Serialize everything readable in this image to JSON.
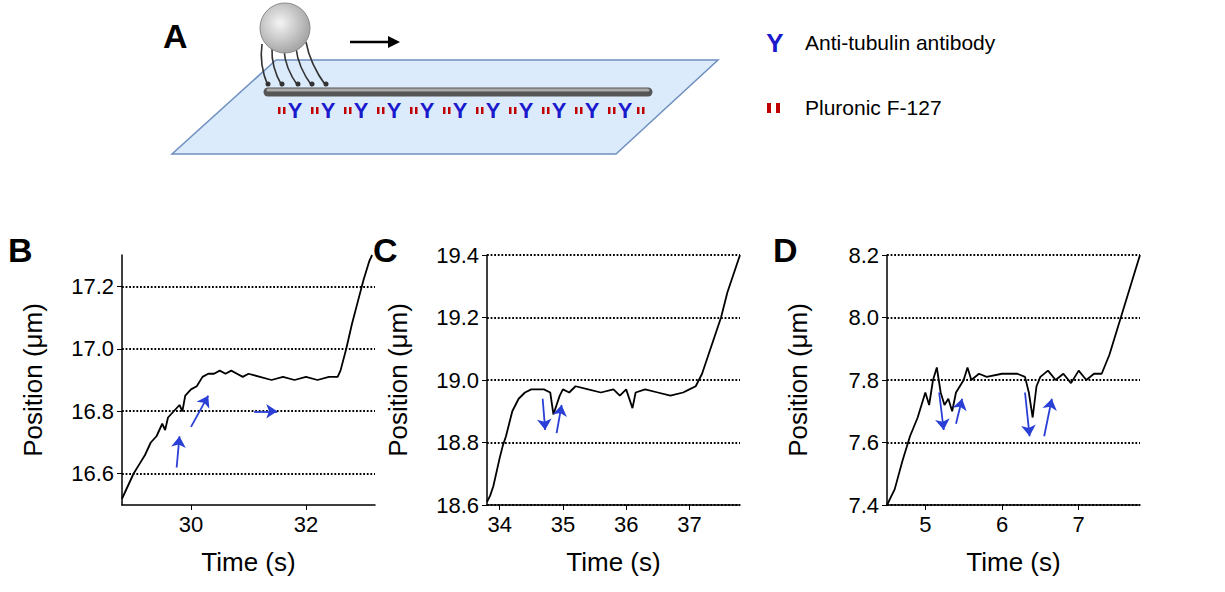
{
  "diagram": {
    "label": "A",
    "legend": [
      {
        "symbol": "Y",
        "label": "Anti-tubulin antibody",
        "color": "#1a1acc"
      },
      {
        "label": "Pluronic F-127",
        "color": "#c00000"
      }
    ]
  },
  "chart_data": [
    {
      "type": "line",
      "label": "B",
      "x_label": "Time (s)",
      "y_label": "Position (μm)",
      "color": "#000000",
      "marker": "none",
      "line_style": "solid",
      "grid": true,
      "xlim": [
        28.8,
        33.2
      ],
      "xticks": [
        30,
        32
      ],
      "ylim": [
        16.5,
        17.3
      ],
      "yticks": [
        16.6,
        16.8,
        {
          "value": 17,
          "label": "17.0"
        },
        17.2
      ],
      "x": [
        28.8,
        28.9,
        29.0,
        29.1,
        29.2,
        29.3,
        29.4,
        29.5,
        29.55,
        29.6,
        29.7,
        29.8,
        29.85,
        29.9,
        30.0,
        30.1,
        30.2,
        30.3,
        30.4,
        30.5,
        30.6,
        30.7,
        30.8,
        30.9,
        31.0,
        31.2,
        31.4,
        31.6,
        31.8,
        32.0,
        32.2,
        32.4,
        32.55,
        32.6,
        32.7,
        32.8,
        32.9,
        33.0,
        33.1,
        33.15
      ],
      "values": [
        16.52,
        16.56,
        16.6,
        16.63,
        16.66,
        16.7,
        16.72,
        16.76,
        16.74,
        16.78,
        16.8,
        16.82,
        16.8,
        16.85,
        16.87,
        16.88,
        16.91,
        16.92,
        16.92,
        16.93,
        16.92,
        16.93,
        16.92,
        16.91,
        16.92,
        16.91,
        16.9,
        16.91,
        16.9,
        16.91,
        16.9,
        16.91,
        16.91,
        16.93,
        17.0,
        17.08,
        17.15,
        17.22,
        17.28,
        17.3
      ],
      "arrows": [
        {
          "from": [
            29.75,
            16.62
          ],
          "to": [
            29.8,
            16.72
          ]
        },
        {
          "from": [
            30.0,
            16.75
          ],
          "to": [
            30.3,
            16.85
          ]
        },
        {
          "from": [
            31.1,
            16.8
          ],
          "to": [
            31.5,
            16.8
          ]
        }
      ]
    },
    {
      "type": "line",
      "label": "C",
      "x_label": "Time (s)",
      "y_label": "Position (μm)",
      "color": "#000000",
      "marker": "none",
      "line_style": "solid",
      "grid": true,
      "xlim": [
        33.8,
        37.8
      ],
      "xticks": [
        34,
        35,
        36,
        37
      ],
      "ylim": [
        18.6,
        19.4
      ],
      "yticks": [
        18.6,
        18.8,
        {
          "value": 19,
          "label": "19.0"
        },
        19.2,
        19.4
      ],
      "x": [
        33.8,
        33.85,
        33.9,
        34.0,
        34.05,
        34.1,
        34.15,
        34.2,
        34.3,
        34.4,
        34.5,
        34.6,
        34.7,
        34.8,
        34.85,
        34.9,
        34.95,
        35.0,
        35.1,
        35.2,
        35.4,
        35.6,
        35.8,
        35.9,
        36.0,
        36.1,
        36.15,
        36.3,
        36.5,
        36.7,
        36.9,
        37.0,
        37.1,
        37.2,
        37.3,
        37.4,
        37.5,
        37.6,
        37.7,
        37.8
      ],
      "values": [
        18.61,
        18.63,
        18.66,
        18.75,
        18.79,
        18.82,
        18.86,
        18.9,
        18.94,
        18.96,
        18.97,
        18.97,
        18.97,
        18.96,
        18.89,
        18.92,
        18.95,
        18.97,
        18.96,
        18.98,
        18.97,
        18.96,
        18.97,
        18.95,
        18.97,
        18.91,
        18.96,
        18.97,
        18.96,
        18.95,
        18.96,
        18.97,
        18.98,
        19.02,
        19.08,
        19.14,
        19.2,
        19.28,
        19.34,
        19.4
      ],
      "arrows": [
        {
          "from": [
            34.68,
            18.94
          ],
          "to": [
            34.72,
            18.84
          ]
        },
        {
          "from": [
            34.9,
            18.83
          ],
          "to": [
            34.98,
            18.92
          ]
        }
      ]
    },
    {
      "type": "line",
      "label": "D",
      "x_label": "Time (s)",
      "y_label": "Position (μm)",
      "color": "#000000",
      "marker": "none",
      "line_style": "solid",
      "grid": true,
      "xlim": [
        4.5,
        7.8
      ],
      "xticks": [
        5,
        6,
        7
      ],
      "ylim": [
        7.4,
        8.2
      ],
      "yticks": [
        7.4,
        7.6,
        7.8,
        {
          "value": 8,
          "label": "8.0"
        },
        8.2
      ],
      "x": [
        4.5,
        4.6,
        4.7,
        4.8,
        4.9,
        5.0,
        5.05,
        5.1,
        5.15,
        5.2,
        5.25,
        5.3,
        5.35,
        5.4,
        5.5,
        5.55,
        5.6,
        5.7,
        5.8,
        6.0,
        6.2,
        6.3,
        6.35,
        6.4,
        6.45,
        6.5,
        6.6,
        6.7,
        6.8,
        6.9,
        7.0,
        7.1,
        7.2,
        7.3,
        7.4,
        7.5,
        7.6,
        7.7,
        7.8
      ],
      "values": [
        7.4,
        7.45,
        7.54,
        7.62,
        7.68,
        7.76,
        7.72,
        7.8,
        7.84,
        7.76,
        7.72,
        7.74,
        7.7,
        7.76,
        7.8,
        7.84,
        7.8,
        7.82,
        7.81,
        7.82,
        7.82,
        7.81,
        7.76,
        7.68,
        7.78,
        7.81,
        7.83,
        7.8,
        7.82,
        7.79,
        7.83,
        7.8,
        7.82,
        7.82,
        7.88,
        7.96,
        8.04,
        8.12,
        8.2
      ],
      "arrows": [
        {
          "from": [
            5.18,
            7.76
          ],
          "to": [
            5.24,
            7.64
          ]
        },
        {
          "from": [
            5.4,
            7.66
          ],
          "to": [
            5.48,
            7.74
          ]
        },
        {
          "from": [
            6.3,
            7.76
          ],
          "to": [
            6.36,
            7.62
          ]
        },
        {
          "from": [
            6.55,
            7.62
          ],
          "to": [
            6.65,
            7.74
          ]
        }
      ]
    }
  ]
}
